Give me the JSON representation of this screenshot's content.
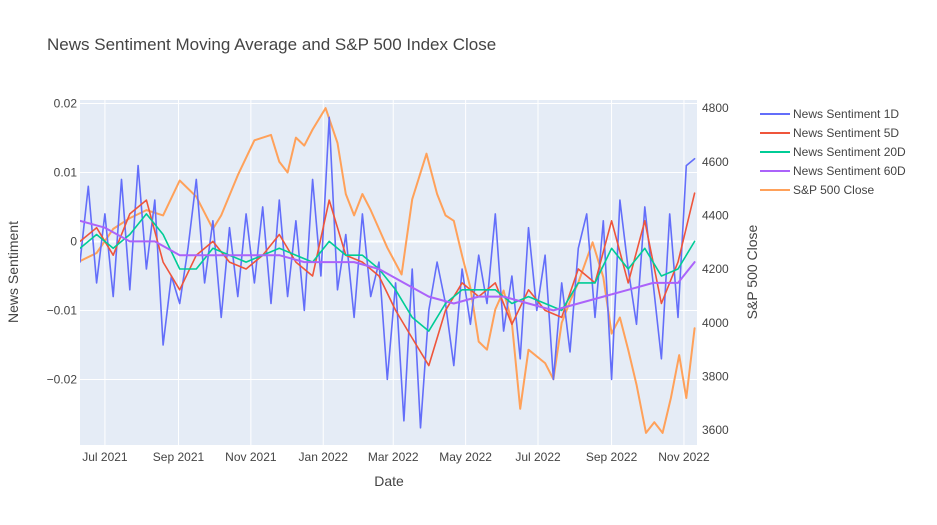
{
  "chart_data": {
    "type": "line",
    "title": "News Sentiment Moving Average and S&P 500 Index Close",
    "xlabel": "Date",
    "ylabel": "News Sentiment",
    "y2label": "S&P 500 Close",
    "x_range": [
      "2021-06-10",
      "2022-11-12"
    ],
    "ylim": [
      -0.0295,
      0.0205
    ],
    "y2lim": [
      3545,
      4830
    ],
    "x_ticks": [
      {
        "date": "2021-07-01",
        "label": "Jul 2021"
      },
      {
        "date": "2021-09-01",
        "label": "Sep 2021"
      },
      {
        "date": "2021-11-01",
        "label": "Nov 2021"
      },
      {
        "date": "2022-01-01",
        "label": "Jan 2022"
      },
      {
        "date": "2022-03-01",
        "label": "Mar 2022"
      },
      {
        "date": "2022-05-01",
        "label": "May 2022"
      },
      {
        "date": "2022-07-01",
        "label": "Jul 2022"
      },
      {
        "date": "2022-09-01",
        "label": "Sep 2022"
      },
      {
        "date": "2022-11-01",
        "label": "Nov 2022"
      }
    ],
    "y_ticks": [
      {
        "value": 0.02,
        "label": "0.02"
      },
      {
        "value": 0.01,
        "label": "0.01"
      },
      {
        "value": 0,
        "label": "0"
      },
      {
        "value": -0.01,
        "label": "−0.01"
      },
      {
        "value": -0.02,
        "label": "−0.02"
      }
    ],
    "y2_ticks": [
      {
        "value": 3600,
        "label": "3600"
      },
      {
        "value": 3800,
        "label": "3800"
      },
      {
        "value": 4000,
        "label": "4000"
      },
      {
        "value": 4200,
        "label": "4200"
      },
      {
        "value": 4400,
        "label": "4400"
      },
      {
        "value": 4600,
        "label": "4600"
      },
      {
        "value": 4800,
        "label": "4800"
      }
    ],
    "grid": true,
    "legend_position": "right",
    "series": [
      {
        "name": "News Sentiment 1D",
        "color": "#636efa",
        "axis": "y",
        "dates": [
          "2021-06-10",
          "2021-06-17",
          "2021-06-24",
          "2021-07-01",
          "2021-07-08",
          "2021-07-15",
          "2021-07-22",
          "2021-07-29",
          "2021-08-05",
          "2021-08-12",
          "2021-08-19",
          "2021-08-26",
          "2021-09-02",
          "2021-09-09",
          "2021-09-16",
          "2021-09-23",
          "2021-09-30",
          "2021-10-07",
          "2021-10-14",
          "2021-10-21",
          "2021-10-28",
          "2021-11-04",
          "2021-11-11",
          "2021-11-18",
          "2021-11-25",
          "2021-12-02",
          "2021-12-09",
          "2021-12-16",
          "2021-12-23",
          "2021-12-30",
          "2022-01-06",
          "2022-01-13",
          "2022-01-20",
          "2022-01-27",
          "2022-02-03",
          "2022-02-10",
          "2022-02-17",
          "2022-02-24",
          "2022-03-03",
          "2022-03-10",
          "2022-03-17",
          "2022-03-24",
          "2022-03-31",
          "2022-04-07",
          "2022-04-14",
          "2022-04-21",
          "2022-04-28",
          "2022-05-05",
          "2022-05-12",
          "2022-05-19",
          "2022-05-26",
          "2022-06-02",
          "2022-06-09",
          "2022-06-16",
          "2022-06-23",
          "2022-06-30",
          "2022-07-07",
          "2022-07-14",
          "2022-07-21",
          "2022-07-28",
          "2022-08-04",
          "2022-08-11",
          "2022-08-18",
          "2022-08-25",
          "2022-09-01",
          "2022-09-08",
          "2022-09-15",
          "2022-09-22",
          "2022-09-29",
          "2022-10-06",
          "2022-10-13",
          "2022-10-20",
          "2022-10-27",
          "2022-11-03",
          "2022-11-10"
        ],
        "values": [
          -0.003,
          0.008,
          -0.006,
          0.004,
          -0.008,
          0.009,
          -0.007,
          0.011,
          -0.004,
          0.006,
          -0.015,
          -0.005,
          -0.009,
          -0.001,
          0.009,
          -0.006,
          0.003,
          -0.011,
          0.002,
          -0.008,
          0.004,
          -0.006,
          0.005,
          -0.009,
          0.006,
          -0.008,
          0.003,
          -0.01,
          0.009,
          -0.005,
          0.018,
          -0.007,
          0.001,
          -0.011,
          0.004,
          -0.008,
          -0.003,
          -0.02,
          -0.006,
          -0.026,
          -0.004,
          -0.027,
          -0.01,
          -0.003,
          -0.009,
          -0.018,
          -0.004,
          -0.012,
          -0.002,
          -0.009,
          0.004,
          -0.013,
          -0.005,
          -0.017,
          0.002,
          -0.01,
          -0.002,
          -0.02,
          -0.006,
          -0.016,
          -0.001,
          0.004,
          -0.011,
          0.003,
          -0.02,
          0.006,
          -0.004,
          -0.012,
          0.005,
          -0.006,
          -0.017,
          0.004,
          -0.011,
          0.011,
          0.012
        ]
      },
      {
        "name": "News Sentiment 5D",
        "color": "#ef553b",
        "axis": "y",
        "dates": [
          "2021-06-10",
          "2021-06-24",
          "2021-07-08",
          "2021-07-22",
          "2021-08-05",
          "2021-08-19",
          "2021-09-02",
          "2021-09-16",
          "2021-09-30",
          "2021-10-14",
          "2021-10-28",
          "2021-11-11",
          "2021-11-25",
          "2021-12-09",
          "2021-12-23",
          "2022-01-06",
          "2022-01-20",
          "2022-02-03",
          "2022-02-17",
          "2022-03-03",
          "2022-03-17",
          "2022-03-31",
          "2022-04-14",
          "2022-04-28",
          "2022-05-12",
          "2022-05-26",
          "2022-06-09",
          "2022-06-23",
          "2022-07-07",
          "2022-07-21",
          "2022-08-04",
          "2022-08-18",
          "2022-09-01",
          "2022-09-15",
          "2022-09-29",
          "2022-10-13",
          "2022-10-27",
          "2022-11-10"
        ],
        "values": [
          0.0,
          0.002,
          -0.002,
          0.004,
          0.006,
          -0.003,
          -0.007,
          -0.002,
          0.0,
          -0.003,
          -0.004,
          -0.002,
          0.001,
          -0.003,
          -0.005,
          0.006,
          -0.002,
          -0.003,
          -0.005,
          -0.01,
          -0.014,
          -0.018,
          -0.01,
          -0.006,
          -0.008,
          -0.006,
          -0.012,
          -0.007,
          -0.01,
          -0.011,
          -0.004,
          -0.006,
          0.003,
          -0.006,
          0.003,
          -0.009,
          -0.003,
          0.007
        ]
      },
      {
        "name": "News Sentiment 20D",
        "color": "#00cc96",
        "axis": "y",
        "dates": [
          "2021-06-10",
          "2021-06-24",
          "2021-07-08",
          "2021-07-22",
          "2021-08-05",
          "2021-08-19",
          "2021-09-02",
          "2021-09-16",
          "2021-09-30",
          "2021-10-14",
          "2021-10-28",
          "2021-11-11",
          "2021-11-25",
          "2021-12-09",
          "2021-12-23",
          "2022-01-06",
          "2022-01-20",
          "2022-02-03",
          "2022-02-17",
          "2022-03-03",
          "2022-03-17",
          "2022-03-31",
          "2022-04-14",
          "2022-04-28",
          "2022-05-12",
          "2022-05-26",
          "2022-06-09",
          "2022-06-23",
          "2022-07-07",
          "2022-07-21",
          "2022-08-04",
          "2022-08-18",
          "2022-09-01",
          "2022-09-15",
          "2022-09-29",
          "2022-10-13",
          "2022-10-27",
          "2022-11-10"
        ],
        "values": [
          -0.001,
          0.001,
          -0.001,
          0.001,
          0.004,
          0.001,
          -0.004,
          -0.004,
          -0.001,
          -0.002,
          -0.003,
          -0.002,
          -0.001,
          -0.002,
          -0.003,
          0.0,
          -0.002,
          -0.002,
          -0.004,
          -0.007,
          -0.011,
          -0.013,
          -0.009,
          -0.007,
          -0.007,
          -0.007,
          -0.009,
          -0.008,
          -0.009,
          -0.01,
          -0.006,
          -0.006,
          -0.001,
          -0.004,
          -0.001,
          -0.005,
          -0.004,
          0.0
        ]
      },
      {
        "name": "News Sentiment 60D",
        "color": "#ab63fa",
        "axis": "y",
        "dates": [
          "2021-06-10",
          "2021-07-01",
          "2021-07-22",
          "2021-08-12",
          "2021-09-02",
          "2021-09-23",
          "2021-10-14",
          "2021-11-04",
          "2021-11-25",
          "2021-12-16",
          "2022-01-06",
          "2022-01-27",
          "2022-02-17",
          "2022-03-10",
          "2022-03-31",
          "2022-04-21",
          "2022-05-12",
          "2022-06-02",
          "2022-06-23",
          "2022-07-14",
          "2022-08-04",
          "2022-08-25",
          "2022-09-15",
          "2022-10-06",
          "2022-10-27",
          "2022-11-10"
        ],
        "values": [
          0.003,
          0.002,
          0.0,
          0.0,
          -0.002,
          -0.002,
          -0.002,
          -0.002,
          -0.002,
          -0.003,
          -0.003,
          -0.003,
          -0.004,
          -0.006,
          -0.008,
          -0.009,
          -0.008,
          -0.008,
          -0.009,
          -0.01,
          -0.009,
          -0.008,
          -0.007,
          -0.006,
          -0.006,
          -0.003
        ]
      },
      {
        "name": "S&P 500 Close",
        "color": "#ffa15a",
        "axis": "y2",
        "dates": [
          "2021-06-10",
          "2021-06-24",
          "2021-07-08",
          "2021-07-22",
          "2021-08-05",
          "2021-08-19",
          "2021-09-02",
          "2021-09-16",
          "2021-09-30",
          "2021-10-07",
          "2021-10-21",
          "2021-11-04",
          "2021-11-18",
          "2021-11-25",
          "2021-12-02",
          "2021-12-09",
          "2021-12-16",
          "2021-12-23",
          "2022-01-03",
          "2022-01-13",
          "2022-01-20",
          "2022-01-27",
          "2022-02-03",
          "2022-02-10",
          "2022-02-24",
          "2022-03-08",
          "2022-03-17",
          "2022-03-29",
          "2022-04-07",
          "2022-04-14",
          "2022-04-21",
          "2022-04-28",
          "2022-05-05",
          "2022-05-12",
          "2022-05-19",
          "2022-05-26",
          "2022-06-02",
          "2022-06-09",
          "2022-06-16",
          "2022-06-23",
          "2022-07-07",
          "2022-07-14",
          "2022-07-21",
          "2022-07-28",
          "2022-08-04",
          "2022-08-16",
          "2022-08-25",
          "2022-09-01",
          "2022-09-08",
          "2022-09-15",
          "2022-09-22",
          "2022-09-30",
          "2022-10-07",
          "2022-10-14",
          "2022-10-21",
          "2022-10-28",
          "2022-11-03",
          "2022-11-10"
        ],
        "values": [
          4230,
          4260,
          4350,
          4390,
          4420,
          4400,
          4530,
          4470,
          4350,
          4400,
          4550,
          4680,
          4700,
          4600,
          4560,
          4690,
          4660,
          4720,
          4800,
          4670,
          4480,
          4400,
          4480,
          4420,
          4280,
          4180,
          4460,
          4630,
          4480,
          4400,
          4380,
          4250,
          4130,
          3930,
          3900,
          4050,
          4120,
          4000,
          3680,
          3900,
          3850,
          3790,
          4000,
          4080,
          4150,
          4300,
          4170,
          3960,
          4020,
          3900,
          3770,
          3590,
          3630,
          3590,
          3720,
          3880,
          3720,
          3980
        ]
      }
    ]
  }
}
